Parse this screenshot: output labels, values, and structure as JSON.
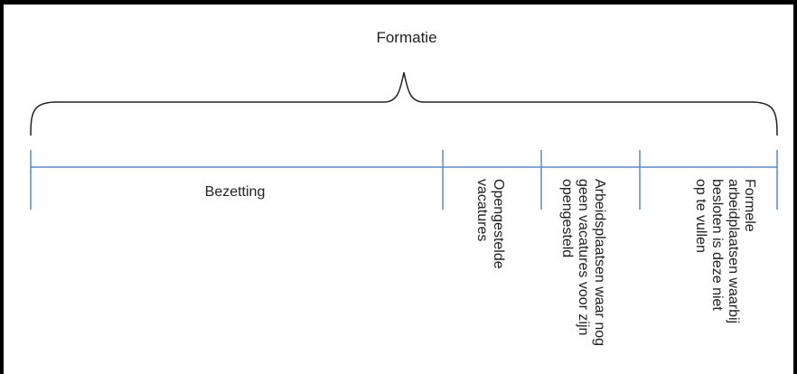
{
  "title": "Formatie",
  "segments": [
    {
      "label": "Bezetting"
    },
    {
      "label": "Opengestelde\nvacatures"
    },
    {
      "label": "Arbeidsplaatsen waar nog\ngeen vacatures voor zijn\nopengesteld"
    },
    {
      "label": "Formele\narbeidplaatsen waarbij\nbesloten is deze niet\nop te vullen"
    }
  ],
  "colors": {
    "axis": "#5b8bc7",
    "brace": "#222222",
    "text": "#222222"
  }
}
